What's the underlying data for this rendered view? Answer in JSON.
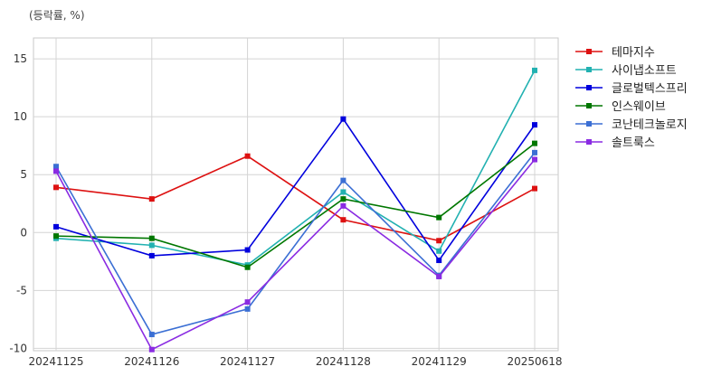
{
  "chart_data": {
    "type": "line",
    "unit_label": "(등락률, %)",
    "categories": [
      "20241125",
      "20241126",
      "20241127",
      "20241128",
      "20241129",
      "20250618"
    ],
    "ylim": [
      -10.2,
      16.8
    ],
    "yticks": [
      15,
      10,
      5,
      0,
      -5,
      -10
    ],
    "ytick_labels": [
      "15",
      "10",
      "5",
      "0",
      "-5",
      "-10"
    ],
    "grid": true,
    "legend_position": "right",
    "series": [
      {
        "name": "테마지수",
        "color": "#dd1111",
        "values": [
          3.9,
          2.9,
          6.6,
          1.1,
          -0.7,
          3.8
        ]
      },
      {
        "name": "사이냅소프트",
        "color": "#22b1b1",
        "values": [
          -0.5,
          -1.1,
          -2.8,
          3.5,
          -1.6,
          14.0
        ]
      },
      {
        "name": "글로벌텍스프리",
        "color": "#0000dd",
        "values": [
          0.5,
          -2.0,
          -1.5,
          9.8,
          -2.4,
          9.3
        ]
      },
      {
        "name": "인스웨이브",
        "color": "#007700",
        "values": [
          -0.3,
          -0.5,
          -3.0,
          2.9,
          1.3,
          7.7
        ]
      },
      {
        "name": "코난테크놀로지",
        "color": "#3b6fd4",
        "values": [
          5.7,
          -8.8,
          -6.6,
          4.5,
          -3.7,
          6.9
        ]
      },
      {
        "name": "솔트룩스",
        "color": "#8a2be2",
        "values": [
          5.3,
          -10.1,
          -6.0,
          2.3,
          -3.8,
          6.3
        ]
      }
    ]
  }
}
